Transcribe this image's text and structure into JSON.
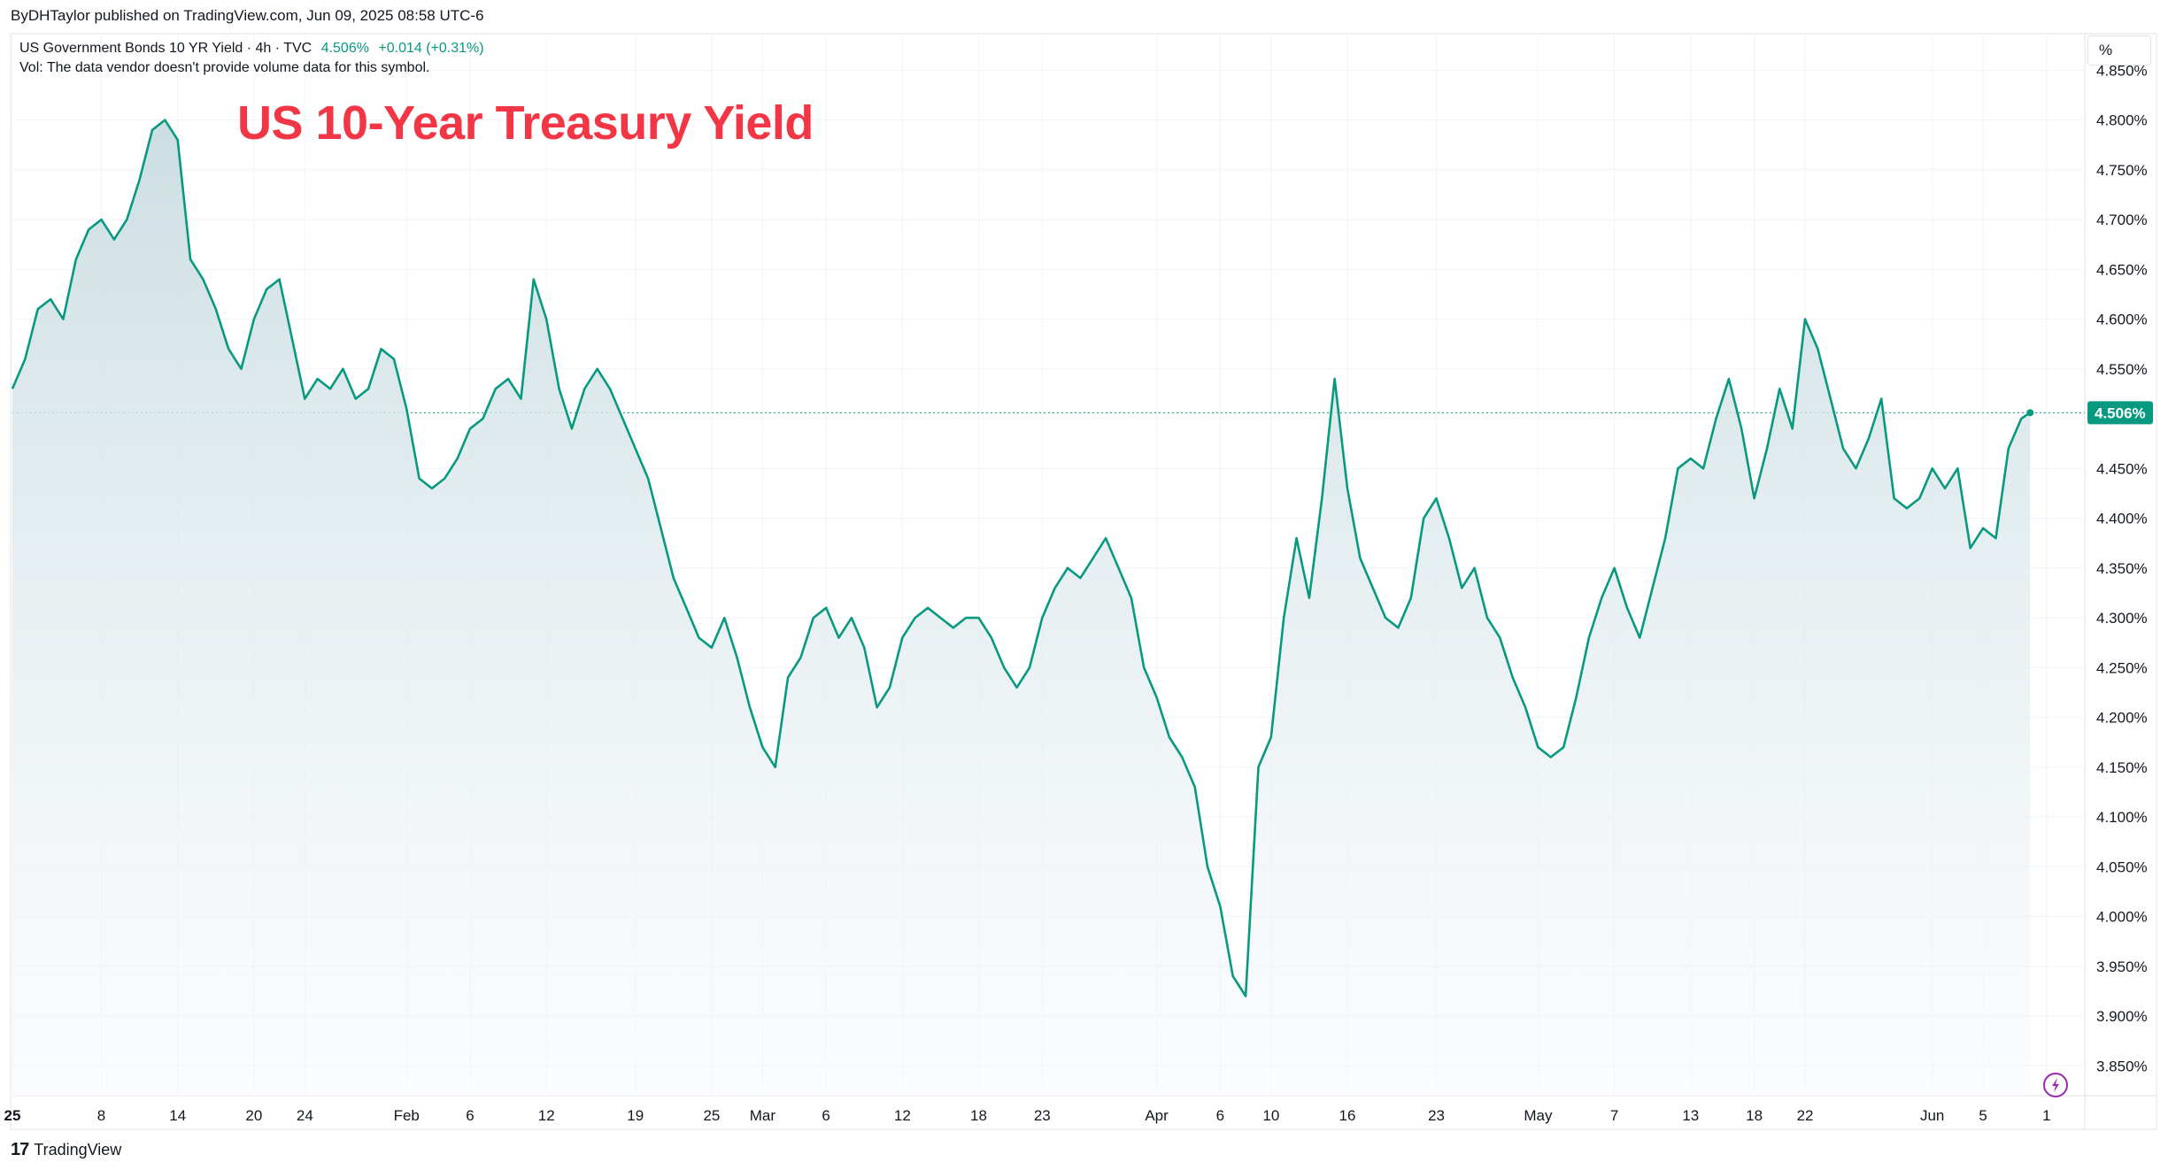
{
  "header": {
    "publisher": "ByDHTaylor published on TradingView.com, Jun 09, 2025 08:58 UTC-6"
  },
  "legend": {
    "symbol": "US Government Bonds 10 YR Yield · 4h · TVC",
    "last_value": "4.506%",
    "change": "+0.014 (+0.31%)",
    "volume_note": "Vol: The data vendor doesn't provide volume data for this symbol."
  },
  "overlay_title": "US 10-Year Treasury Yield",
  "price_scale_button": "%",
  "last_price_label": "4.506%",
  "footer": {
    "brand": "TradingView",
    "brand_mark": "17"
  },
  "colors": {
    "line": "#089981",
    "title": "#f23645",
    "fill_top": "#c9dce0",
    "fill_bottom": "#f7f9fc"
  },
  "icons": {
    "alert": "lightning-icon",
    "logo": "tradingview-logo-icon"
  },
  "chart_data": {
    "type": "area",
    "title": "",
    "xlabel": "",
    "ylabel": "",
    "ylim": [
      3.82,
      4.885
    ],
    "y_ticks": [
      "4.850%",
      "4.800%",
      "4.750%",
      "4.700%",
      "4.650%",
      "4.600%",
      "4.550%",
      "4.500%",
      "4.450%",
      "4.400%",
      "4.350%",
      "4.300%",
      "4.250%",
      "4.200%",
      "4.150%",
      "4.100%",
      "4.050%",
      "4.000%",
      "3.950%",
      "3.900%",
      "3.850%"
    ],
    "x_ticks": [
      {
        "label": "25",
        "day": 0,
        "bold": true
      },
      {
        "label": "8",
        "day": 7,
        "bold": false
      },
      {
        "label": "14",
        "day": 13,
        "bold": false
      },
      {
        "label": "20",
        "day": 19,
        "bold": false
      },
      {
        "label": "24",
        "day": 23,
        "bold": false
      },
      {
        "label": "Feb",
        "day": 31,
        "bold": false
      },
      {
        "label": "6",
        "day": 36,
        "bold": false
      },
      {
        "label": "12",
        "day": 42,
        "bold": false
      },
      {
        "label": "19",
        "day": 49,
        "bold": false
      },
      {
        "label": "25",
        "day": 55,
        "bold": false
      },
      {
        "label": "Mar",
        "day": 59,
        "bold": false
      },
      {
        "label": "6",
        "day": 64,
        "bold": false
      },
      {
        "label": "12",
        "day": 70,
        "bold": false
      },
      {
        "label": "18",
        "day": 76,
        "bold": false
      },
      {
        "label": "23",
        "day": 81,
        "bold": false
      },
      {
        "label": "Apr",
        "day": 90,
        "bold": false
      },
      {
        "label": "6",
        "day": 95,
        "bold": false
      },
      {
        "label": "10",
        "day": 99,
        "bold": false
      },
      {
        "label": "16",
        "day": 105,
        "bold": false
      },
      {
        "label": "23",
        "day": 112,
        "bold": false
      },
      {
        "label": "May",
        "day": 120,
        "bold": false
      },
      {
        "label": "7",
        "day": 126,
        "bold": false
      },
      {
        "label": "13",
        "day": 132,
        "bold": false
      },
      {
        "label": "18",
        "day": 137,
        "bold": false
      },
      {
        "label": "22",
        "day": 141,
        "bold": false
      },
      {
        "label": "Jun",
        "day": 151,
        "bold": false
      },
      {
        "label": "5",
        "day": 155,
        "bold": false
      },
      {
        "label": "1",
        "day": 160,
        "bold": false
      }
    ],
    "series": [
      {
        "points": [
          [
            0,
            4.53
          ],
          [
            1,
            4.56
          ],
          [
            2,
            4.61
          ],
          [
            3,
            4.62
          ],
          [
            4,
            4.6
          ],
          [
            5,
            4.66
          ],
          [
            6,
            4.69
          ],
          [
            7,
            4.7
          ],
          [
            8,
            4.68
          ],
          [
            9,
            4.7
          ],
          [
            10,
            4.74
          ],
          [
            11,
            4.79
          ],
          [
            12,
            4.8
          ],
          [
            13,
            4.78
          ],
          [
            14,
            4.66
          ],
          [
            15,
            4.64
          ],
          [
            16,
            4.61
          ],
          [
            17,
            4.57
          ],
          [
            18,
            4.55
          ],
          [
            19,
            4.6
          ],
          [
            20,
            4.63
          ],
          [
            21,
            4.64
          ],
          [
            22,
            4.58
          ],
          [
            23,
            4.52
          ],
          [
            24,
            4.54
          ],
          [
            25,
            4.53
          ],
          [
            26,
            4.55
          ],
          [
            27,
            4.52
          ],
          [
            28,
            4.53
          ],
          [
            29,
            4.57
          ],
          [
            30,
            4.56
          ],
          [
            31,
            4.51
          ],
          [
            32,
            4.44
          ],
          [
            33,
            4.43
          ],
          [
            34,
            4.44
          ],
          [
            35,
            4.46
          ],
          [
            36,
            4.49
          ],
          [
            37,
            4.5
          ],
          [
            38,
            4.53
          ],
          [
            39,
            4.54
          ],
          [
            40,
            4.52
          ],
          [
            41,
            4.64
          ],
          [
            42,
            4.6
          ],
          [
            43,
            4.53
          ],
          [
            44,
            4.49
          ],
          [
            45,
            4.53
          ],
          [
            46,
            4.55
          ],
          [
            47,
            4.53
          ],
          [
            48,
            4.5
          ],
          [
            49,
            4.47
          ],
          [
            50,
            4.44
          ],
          [
            51,
            4.39
          ],
          [
            52,
            4.34
          ],
          [
            53,
            4.31
          ],
          [
            54,
            4.28
          ],
          [
            55,
            4.27
          ],
          [
            56,
            4.3
          ],
          [
            57,
            4.26
          ],
          [
            58,
            4.21
          ],
          [
            59,
            4.17
          ],
          [
            60,
            4.15
          ],
          [
            61,
            4.24
          ],
          [
            62,
            4.26
          ],
          [
            63,
            4.3
          ],
          [
            64,
            4.31
          ],
          [
            65,
            4.28
          ],
          [
            66,
            4.3
          ],
          [
            67,
            4.27
          ],
          [
            68,
            4.21
          ],
          [
            69,
            4.23
          ],
          [
            70,
            4.28
          ],
          [
            71,
            4.3
          ],
          [
            72,
            4.31
          ],
          [
            73,
            4.3
          ],
          [
            74,
            4.29
          ],
          [
            75,
            4.3
          ],
          [
            76,
            4.3
          ],
          [
            77,
            4.28
          ],
          [
            78,
            4.25
          ],
          [
            79,
            4.23
          ],
          [
            80,
            4.25
          ],
          [
            81,
            4.3
          ],
          [
            82,
            4.33
          ],
          [
            83,
            4.35
          ],
          [
            84,
            4.34
          ],
          [
            85,
            4.36
          ],
          [
            86,
            4.38
          ],
          [
            87,
            4.35
          ],
          [
            88,
            4.32
          ],
          [
            89,
            4.25
          ],
          [
            90,
            4.22
          ],
          [
            91,
            4.18
          ],
          [
            92,
            4.16
          ],
          [
            93,
            4.13
          ],
          [
            94,
            4.05
          ],
          [
            95,
            4.01
          ],
          [
            96,
            3.94
          ],
          [
            97,
            3.92
          ],
          [
            98,
            4.15
          ],
          [
            99,
            4.18
          ],
          [
            100,
            4.3
          ],
          [
            101,
            4.38
          ],
          [
            102,
            4.32
          ],
          [
            103,
            4.42
          ],
          [
            104,
            4.54
          ],
          [
            105,
            4.43
          ],
          [
            106,
            4.36
          ],
          [
            107,
            4.33
          ],
          [
            108,
            4.3
          ],
          [
            109,
            4.29
          ],
          [
            110,
            4.32
          ],
          [
            111,
            4.4
          ],
          [
            112,
            4.42
          ],
          [
            113,
            4.38
          ],
          [
            114,
            4.33
          ],
          [
            115,
            4.35
          ],
          [
            116,
            4.3
          ],
          [
            117,
            4.28
          ],
          [
            118,
            4.24
          ],
          [
            119,
            4.21
          ],
          [
            120,
            4.17
          ],
          [
            121,
            4.16
          ],
          [
            122,
            4.17
          ],
          [
            123,
            4.22
          ],
          [
            124,
            4.28
          ],
          [
            125,
            4.32
          ],
          [
            126,
            4.35
          ],
          [
            127,
            4.31
          ],
          [
            128,
            4.28
          ],
          [
            129,
            4.33
          ],
          [
            130,
            4.38
          ],
          [
            131,
            4.45
          ],
          [
            132,
            4.46
          ],
          [
            133,
            4.45
          ],
          [
            134,
            4.5
          ],
          [
            135,
            4.54
          ],
          [
            136,
            4.49
          ],
          [
            137,
            4.42
          ],
          [
            138,
            4.47
          ],
          [
            139,
            4.53
          ],
          [
            140,
            4.49
          ],
          [
            141,
            4.6
          ],
          [
            142,
            4.57
          ],
          [
            143,
            4.52
          ],
          [
            144,
            4.47
          ],
          [
            145,
            4.45
          ],
          [
            146,
            4.48
          ],
          [
            147,
            4.52
          ],
          [
            148,
            4.42
          ],
          [
            149,
            4.41
          ],
          [
            150,
            4.42
          ],
          [
            151,
            4.45
          ],
          [
            152,
            4.43
          ],
          [
            153,
            4.45
          ],
          [
            154,
            4.37
          ],
          [
            155,
            4.39
          ],
          [
            156,
            4.38
          ],
          [
            157,
            4.47
          ],
          [
            158,
            4.5
          ],
          [
            158.7,
            4.506
          ]
        ]
      }
    ],
    "last": {
      "day": 158.7,
      "value": 4.506
    },
    "grid": true,
    "legend": "none"
  }
}
